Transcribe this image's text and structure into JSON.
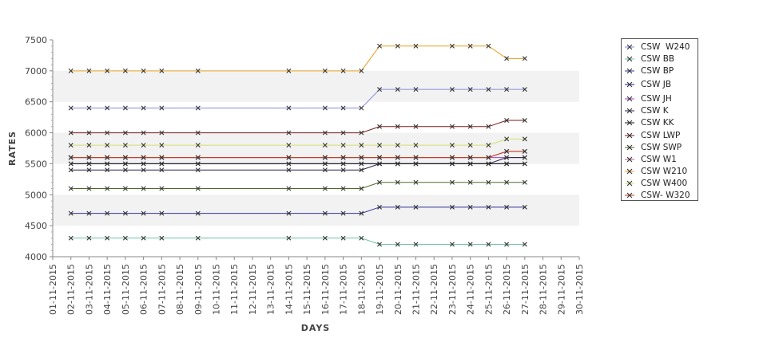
{
  "chart_data": {
    "type": "line",
    "xlabel": "DAYS",
    "ylabel": "RATES",
    "ylim": [
      4000,
      7500
    ],
    "yticks": [
      4000,
      4500,
      5000,
      5500,
      6000,
      6500,
      7000,
      7500
    ],
    "bands": [
      [
        4500,
        5000
      ],
      [
        5500,
        6000
      ],
      [
        6500,
        7000
      ]
    ],
    "legend_position": "right",
    "x_dates": [
      "01-11-2015",
      "02-11-2015",
      "03-11-2015",
      "04-11-2015",
      "05-11-2015",
      "06-11-2015",
      "07-11-2015",
      "08-11-2015",
      "09-11-2015",
      "10-11-2015",
      "11-11-2015",
      "12-11-2015",
      "13-11-2015",
      "14-11-2015",
      "15-11-2015",
      "16-11-2015",
      "17-11-2015",
      "18-11-2015",
      "19-11-2015",
      "20-11-2015",
      "21-11-2015",
      "22-11-2015",
      "23-11-2015",
      "24-11-2015",
      "25-11-2015",
      "26-11-2015",
      "27-11-2015",
      "28-11-2015",
      "29-11-2015",
      "30-11-2015"
    ],
    "x": [
      "02-11-2015",
      "03-11-2015",
      "04-11-2015",
      "05-11-2015",
      "06-11-2015",
      "07-11-2015",
      "09-11-2015",
      "14-11-2015",
      "16-11-2015",
      "17-11-2015",
      "18-11-2015",
      "19-11-2015",
      "20-11-2015",
      "21-11-2015",
      "23-11-2015",
      "24-11-2015",
      "25-11-2015",
      "26-11-2015",
      "27-11-2015"
    ],
    "series": [
      {
        "name": "CSW  W240",
        "color": "#8a8adc",
        "values": [
          6400,
          6400,
          6400,
          6400,
          6400,
          6400,
          6400,
          6400,
          6400,
          6400,
          6400,
          6700,
          6700,
          6700,
          6700,
          6700,
          6700,
          6700,
          6700
        ]
      },
      {
        "name": "CSW BB",
        "color": "#6fc1a6",
        "values": [
          4300,
          4300,
          4300,
          4300,
          4300,
          4300,
          4300,
          4300,
          4300,
          4300,
          4300,
          4200,
          4200,
          4200,
          4200,
          4200,
          4200,
          4200,
          4200
        ]
      },
      {
        "name": "CSW BP",
        "color": "#333399",
        "values": [
          4700,
          4700,
          4700,
          4700,
          4700,
          4700,
          4700,
          4700,
          4700,
          4700,
          4700,
          4800,
          4800,
          4800,
          4800,
          4800,
          4800,
          4800,
          4800
        ]
      },
      {
        "name": "CSW JB",
        "color": "#1a1aa0",
        "values": [
          5500,
          5500,
          5500,
          5500,
          5500,
          5500,
          5500,
          5500,
          5500,
          5500,
          5500,
          5500,
          5500,
          5500,
          5500,
          5500,
          5500,
          5500,
          5500
        ]
      },
      {
        "name": "CSW JH",
        "color": "#a040c0",
        "values": [
          5600,
          5600,
          5600,
          5600,
          5600,
          5600,
          5600,
          5600,
          5600,
          5600,
          5600,
          5600,
          5600,
          5600,
          5600,
          5600,
          5600,
          5600,
          5600
        ]
      },
      {
        "name": "CSW K",
        "color": "#222244",
        "values": [
          5400,
          5400,
          5400,
          5400,
          5400,
          5400,
          5400,
          5400,
          5400,
          5400,
          5400,
          5500,
          5500,
          5500,
          5500,
          5500,
          5500,
          5600,
          5600
        ]
      },
      {
        "name": "CSW KK",
        "color": "#111111",
        "values": [
          5500,
          5500,
          5500,
          5500,
          5500,
          5500,
          5500,
          5500,
          5500,
          5500,
          5500,
          5500,
          5500,
          5500,
          5500,
          5500,
          5500,
          5500,
          5500
        ]
      },
      {
        "name": "CSW LWP",
        "color": "#7a1a1a",
        "values": [
          6000,
          6000,
          6000,
          6000,
          6000,
          6000,
          6000,
          6000,
          6000,
          6000,
          6000,
          6100,
          6100,
          6100,
          6100,
          6100,
          6100,
          6200,
          6200
        ]
      },
      {
        "name": "CSW SWP",
        "color": "#4a6a2a",
        "values": [
          5100,
          5100,
          5100,
          5100,
          5100,
          5100,
          5100,
          5100,
          5100,
          5100,
          5100,
          5200,
          5200,
          5200,
          5200,
          5200,
          5200,
          5200,
          5200
        ]
      },
      {
        "name": "CSW W1",
        "color": "#c0608a",
        "values": [
          5600,
          5600,
          5600,
          5600,
          5600,
          5600,
          5600,
          5600,
          5600,
          5600,
          5600,
          5600,
          5600,
          5600,
          5600,
          5600,
          5600,
          5700,
          5700
        ]
      },
      {
        "name": "CSW W210",
        "color": "#e8a020",
        "values": [
          7000,
          7000,
          7000,
          7000,
          7000,
          7000,
          7000,
          7000,
          7000,
          7000,
          7000,
          7400,
          7400,
          7400,
          7400,
          7400,
          7400,
          7200,
          7200
        ]
      },
      {
        "name": "CSW W400",
        "color": "#d4e070",
        "values": [
          5800,
          5800,
          5800,
          5800,
          5800,
          5800,
          5800,
          5800,
          5800,
          5800,
          5800,
          5800,
          5800,
          5800,
          5800,
          5800,
          5800,
          5900,
          5900
        ]
      },
      {
        "name": "CSW- W320",
        "color": "#c83a14",
        "values": [
          5600,
          5600,
          5600,
          5600,
          5600,
          5600,
          5600,
          5600,
          5600,
          5600,
          5600,
          5600,
          5600,
          5600,
          5600,
          5600,
          5600,
          5700,
          5700
        ]
      }
    ]
  }
}
